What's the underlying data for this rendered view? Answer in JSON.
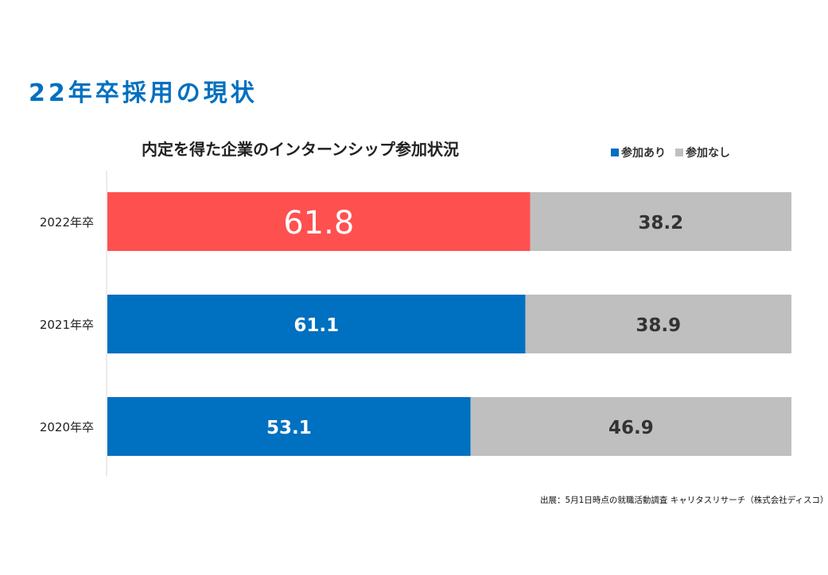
{
  "slide": {
    "title": "22年卒採用の現状",
    "title_color": "#0070C0"
  },
  "chart_data": {
    "type": "bar",
    "orientation": "horizontal",
    "stacked": true,
    "title": "内定を得た企業のインターンシップ参加状況",
    "categories": [
      "2022年卒",
      "2021年卒",
      "2020年卒"
    ],
    "series": [
      {
        "name": "参加あり",
        "values": [
          61.8,
          61.1,
          53.1
        ],
        "color": "#0070C0",
        "highlight_colors": [
          "#FF5050",
          null,
          null
        ],
        "label_color": "#ffffff"
      },
      {
        "name": "参加なし",
        "values": [
          38.2,
          38.9,
          46.9
        ],
        "color": "#BFBFBF",
        "label_color": "#333333"
      }
    ],
    "xlim": [
      0,
      100
    ],
    "grid": false,
    "legend_position": "top-right"
  },
  "source": "出展：5月1日時点の就職活動調査 キャリタスリサーチ（株式会社ディスコ）"
}
